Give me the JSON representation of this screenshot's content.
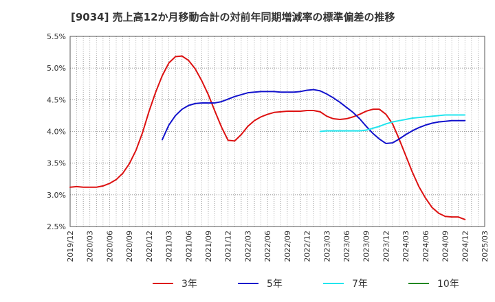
{
  "chart_data": {
    "type": "line",
    "title": "[9034]  売上高12か月移動合計の対前年同期増減率の標準偏差の推移",
    "xlabel": "",
    "ylabel": "",
    "ylim": [
      2.5,
      5.5
    ],
    "yticks": [
      2.5,
      3.0,
      3.5,
      4.0,
      4.5,
      5.0,
      5.5
    ],
    "ytick_labels": [
      "2.5%",
      "3.0%",
      "3.5%",
      "4.0%",
      "4.5%",
      "5.0%",
      "5.5%"
    ],
    "xlim": [
      "2019/12",
      "2025/03"
    ],
    "xtick_labels": [
      "2019/12",
      "2020/03",
      "2020/06",
      "2020/09",
      "2020/12",
      "2021/03",
      "2021/06",
      "2021/09",
      "2021/12",
      "2022/03",
      "2022/06",
      "2022/09",
      "2022/12",
      "2023/03",
      "2023/06",
      "2023/09",
      "2023/12",
      "2024/03",
      "2024/06",
      "2024/09",
      "2024/12",
      "2025/03"
    ],
    "grid": true,
    "legend_position": "bottom",
    "series": [
      {
        "name": "3年",
        "color": "#dd1111",
        "points": [
          [
            "2019/12",
            3.12
          ],
          [
            "2020/01",
            3.13
          ],
          [
            "2020/02",
            3.12
          ],
          [
            "2020/03",
            3.12
          ],
          [
            "2020/04",
            3.12
          ],
          [
            "2020/05",
            3.14
          ],
          [
            "2020/06",
            3.18
          ],
          [
            "2020/07",
            3.24
          ],
          [
            "2020/08",
            3.34
          ],
          [
            "2020/09",
            3.49
          ],
          [
            "2020/10",
            3.7
          ],
          [
            "2020/11",
            3.98
          ],
          [
            "2020/12",
            4.32
          ],
          [
            "2021/01",
            4.62
          ],
          [
            "2021/02",
            4.88
          ],
          [
            "2021/03",
            5.08
          ],
          [
            "2021/04",
            5.18
          ],
          [
            "2021/05",
            5.19
          ],
          [
            "2021/06",
            5.12
          ],
          [
            "2021/07",
            4.99
          ],
          [
            "2021/08",
            4.8
          ],
          [
            "2021/09",
            4.58
          ],
          [
            "2021/10",
            4.32
          ],
          [
            "2021/11",
            4.07
          ],
          [
            "2021/12",
            3.86
          ],
          [
            "2022/01",
            3.85
          ],
          [
            "2022/02",
            3.95
          ],
          [
            "2022/03",
            4.08
          ],
          [
            "2022/04",
            4.17
          ],
          [
            "2022/05",
            4.23
          ],
          [
            "2022/06",
            4.27
          ],
          [
            "2022/07",
            4.3
          ],
          [
            "2022/08",
            4.31
          ],
          [
            "2022/09",
            4.32
          ],
          [
            "2022/10",
            4.32
          ],
          [
            "2022/11",
            4.32
          ],
          [
            "2022/12",
            4.33
          ],
          [
            "2023/01",
            4.33
          ],
          [
            "2023/02",
            4.31
          ],
          [
            "2023/03",
            4.24
          ],
          [
            "2023/04",
            4.2
          ],
          [
            "2023/05",
            4.19
          ],
          [
            "2023/06",
            4.2
          ],
          [
            "2023/07",
            4.23
          ],
          [
            "2023/08",
            4.27
          ],
          [
            "2023/09",
            4.32
          ],
          [
            "2023/10",
            4.35
          ],
          [
            "2023/11",
            4.35
          ],
          [
            "2023/12",
            4.27
          ],
          [
            "2024/01",
            4.12
          ],
          [
            "2024/02",
            3.88
          ],
          [
            "2024/03",
            3.62
          ],
          [
            "2024/04",
            3.36
          ],
          [
            "2024/05",
            3.13
          ],
          [
            "2024/06",
            2.95
          ],
          [
            "2024/07",
            2.8
          ],
          [
            "2024/08",
            2.71
          ],
          [
            "2024/09",
            2.66
          ],
          [
            "2024/10",
            2.65
          ],
          [
            "2024/11",
            2.65
          ],
          [
            "2024/12",
            2.61
          ]
        ]
      },
      {
        "name": "5年",
        "color": "#1111cc",
        "points": [
          [
            "2021/02",
            3.87
          ],
          [
            "2021/03",
            4.1
          ],
          [
            "2021/04",
            4.25
          ],
          [
            "2021/05",
            4.35
          ],
          [
            "2021/06",
            4.41
          ],
          [
            "2021/07",
            4.44
          ],
          [
            "2021/08",
            4.45
          ],
          [
            "2021/09",
            4.45
          ],
          [
            "2021/10",
            4.45
          ],
          [
            "2021/11",
            4.47
          ],
          [
            "2021/12",
            4.51
          ],
          [
            "2022/01",
            4.55
          ],
          [
            "2022/02",
            4.58
          ],
          [
            "2022/03",
            4.61
          ],
          [
            "2022/04",
            4.62
          ],
          [
            "2022/05",
            4.63
          ],
          [
            "2022/06",
            4.63
          ],
          [
            "2022/07",
            4.63
          ],
          [
            "2022/08",
            4.62
          ],
          [
            "2022/09",
            4.62
          ],
          [
            "2022/10",
            4.62
          ],
          [
            "2022/11",
            4.63
          ],
          [
            "2022/12",
            4.65
          ],
          [
            "2023/01",
            4.66
          ],
          [
            "2023/02",
            4.64
          ],
          [
            "2023/03",
            4.59
          ],
          [
            "2023/04",
            4.53
          ],
          [
            "2023/05",
            4.46
          ],
          [
            "2023/06",
            4.38
          ],
          [
            "2023/07",
            4.3
          ],
          [
            "2023/08",
            4.2
          ],
          [
            "2023/09",
            4.08
          ],
          [
            "2023/10",
            3.97
          ],
          [
            "2023/11",
            3.88
          ],
          [
            "2023/12",
            3.81
          ],
          [
            "2024/01",
            3.82
          ],
          [
            "2024/02",
            3.88
          ],
          [
            "2024/03",
            3.95
          ],
          [
            "2024/04",
            4.01
          ],
          [
            "2024/05",
            4.06
          ],
          [
            "2024/06",
            4.1
          ],
          [
            "2024/07",
            4.13
          ],
          [
            "2024/08",
            4.15
          ],
          [
            "2024/09",
            4.16
          ],
          [
            "2024/10",
            4.17
          ],
          [
            "2024/11",
            4.17
          ],
          [
            "2024/12",
            4.17
          ]
        ]
      },
      {
        "name": "7年",
        "color": "#22e5ee",
        "points": [
          [
            "2023/02",
            4.0
          ],
          [
            "2023/03",
            4.01
          ],
          [
            "2023/04",
            4.01
          ],
          [
            "2023/05",
            4.01
          ],
          [
            "2023/06",
            4.01
          ],
          [
            "2023/07",
            4.01
          ],
          [
            "2023/08",
            4.01
          ],
          [
            "2023/09",
            4.02
          ],
          [
            "2023/10",
            4.05
          ],
          [
            "2023/11",
            4.08
          ],
          [
            "2023/12",
            4.12
          ],
          [
            "2024/01",
            4.15
          ],
          [
            "2024/02",
            4.17
          ],
          [
            "2024/03",
            4.19
          ],
          [
            "2024/04",
            4.21
          ],
          [
            "2024/05",
            4.22
          ],
          [
            "2024/06",
            4.23
          ],
          [
            "2024/07",
            4.24
          ],
          [
            "2024/08",
            4.25
          ],
          [
            "2024/09",
            4.26
          ],
          [
            "2024/10",
            4.26
          ],
          [
            "2024/11",
            4.26
          ],
          [
            "2024/12",
            4.26
          ]
        ]
      },
      {
        "name": "10年",
        "color": "#228822",
        "points": []
      }
    ]
  }
}
